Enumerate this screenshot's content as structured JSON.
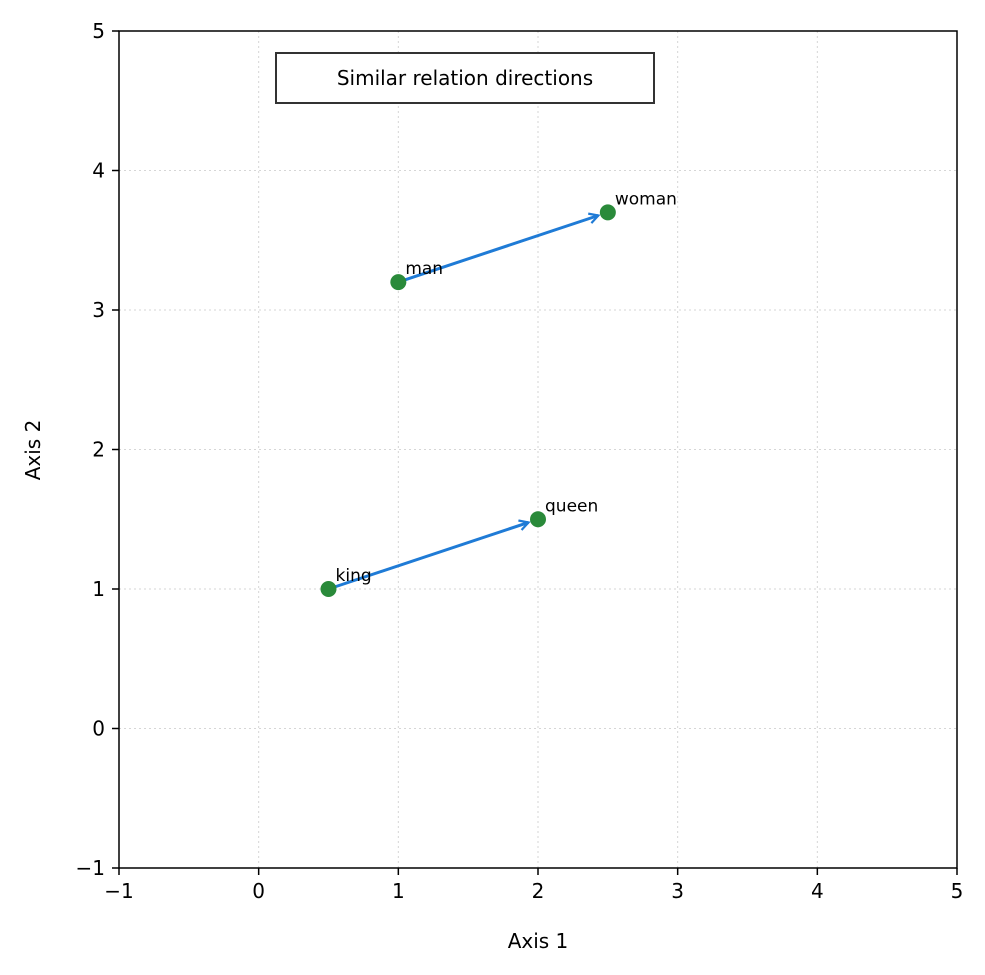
{
  "chart_data": {
    "type": "scatter",
    "title": "",
    "xlabel": "Axis 1",
    "ylabel": "Axis 2",
    "xlim": [
      -1,
      5
    ],
    "ylim": [
      -1,
      5
    ],
    "xticks": [
      "−1",
      "0",
      "1",
      "2",
      "3",
      "4",
      "5"
    ],
    "yticks": [
      "−1",
      "0",
      "1",
      "2",
      "3",
      "4",
      "5"
    ],
    "grid": true,
    "annotation_box": "Similar relation directions",
    "points": [
      {
        "label": "king",
        "x": 0.5,
        "y": 1.0
      },
      {
        "label": "queen",
        "x": 2.0,
        "y": 1.5
      },
      {
        "label": "man",
        "x": 1.0,
        "y": 3.2
      },
      {
        "label": "woman",
        "x": 2.5,
        "y": 3.7
      }
    ],
    "arrows": [
      {
        "from": "king",
        "to": "queen"
      },
      {
        "from": "man",
        "to": "woman"
      }
    ],
    "colors": {
      "point": "#2a8a3a",
      "arrow": "#1f7bd6"
    }
  }
}
